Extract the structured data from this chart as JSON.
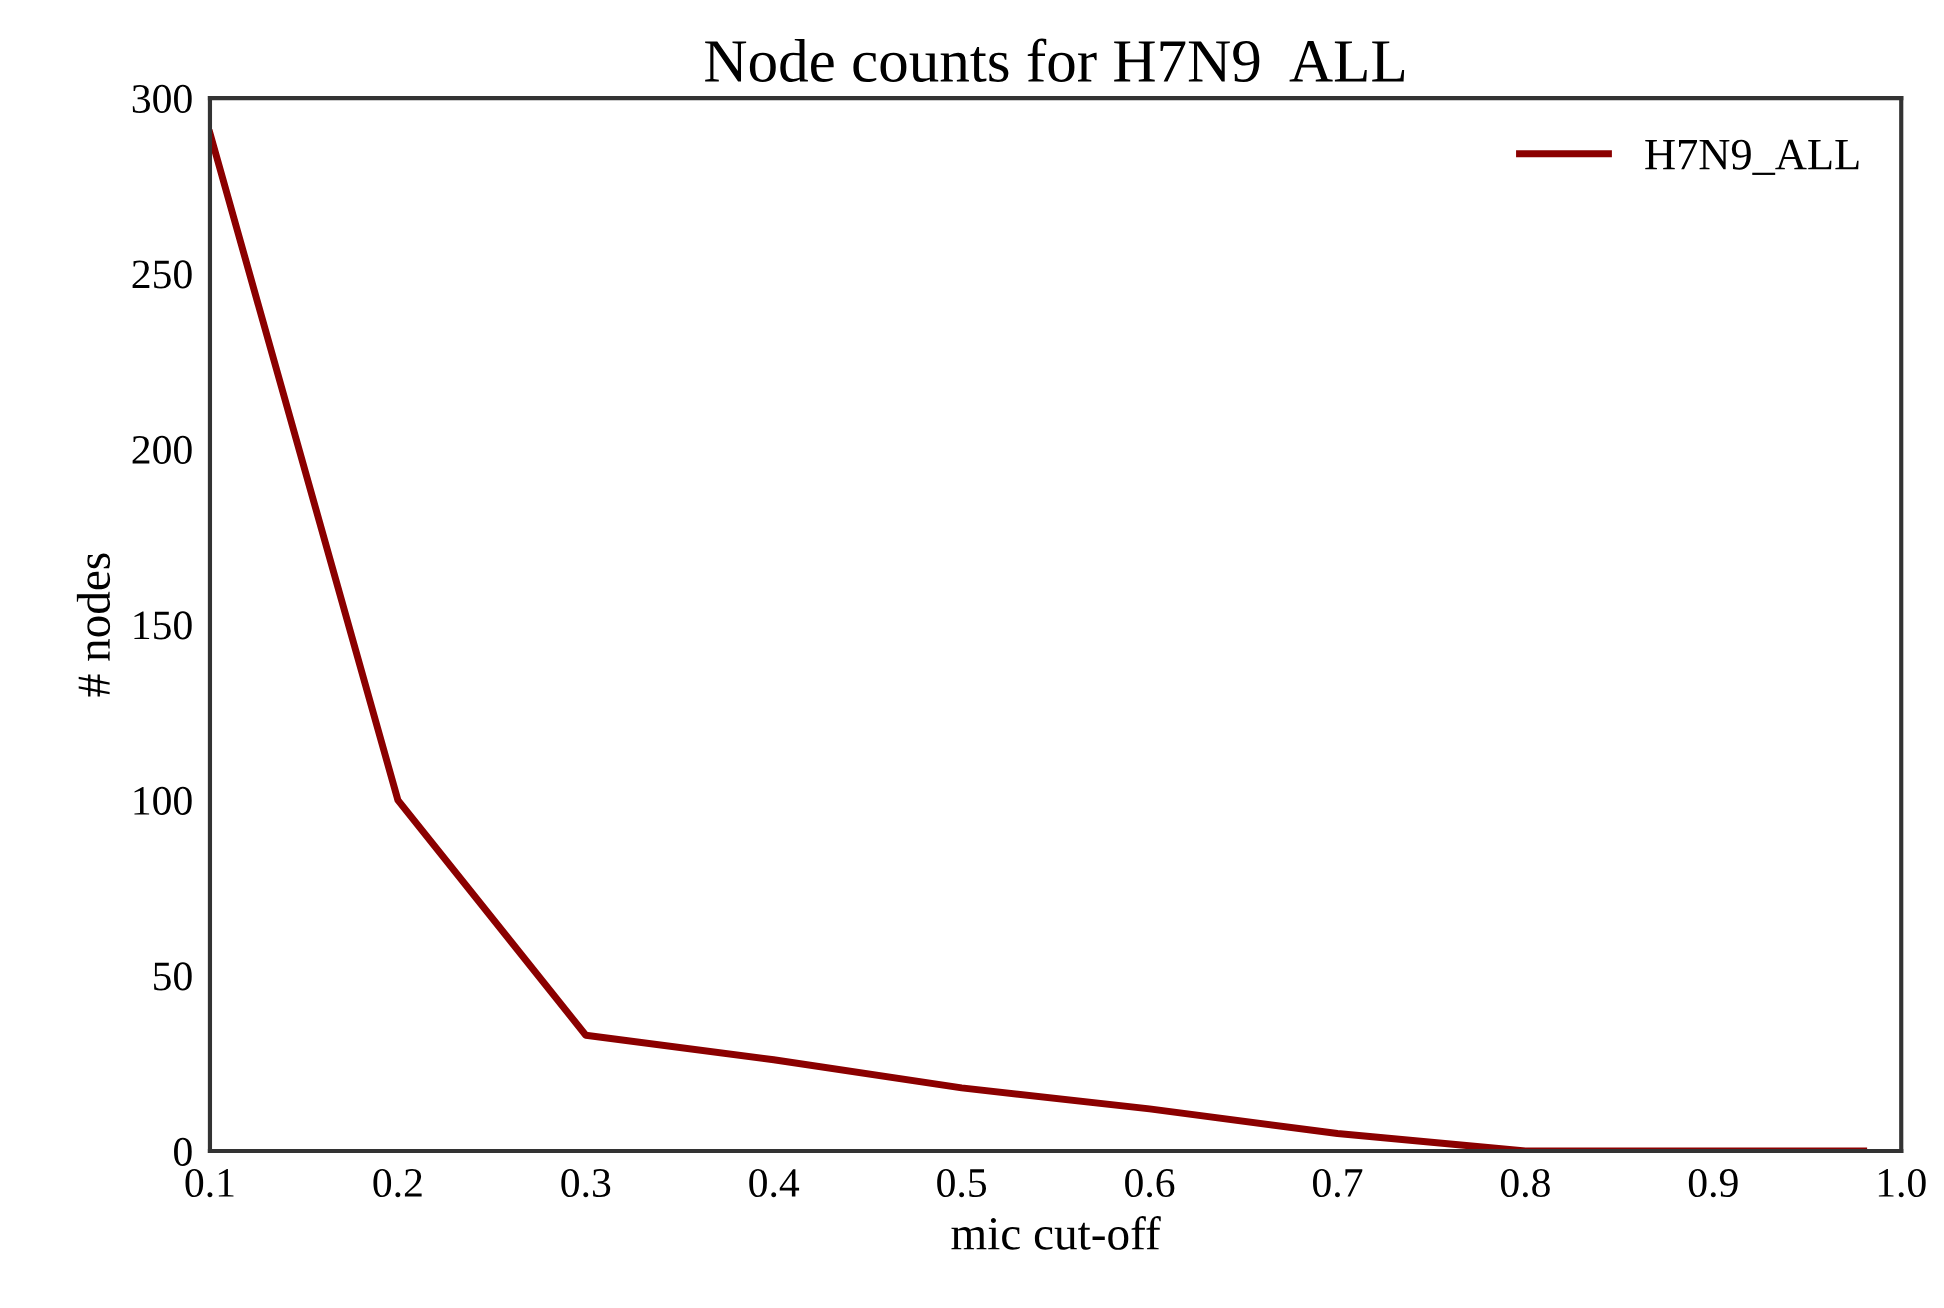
{
  "chart_data": {
    "type": "line",
    "title": "Node counts for H7N9  ALL",
    "xlabel": "mic cut-off",
    "ylabel": "# nodes",
    "x": [
      0.1,
      0.2,
      0.3,
      0.4,
      0.5,
      0.6,
      0.7,
      0.8,
      0.9,
      0.98
    ],
    "series": [
      {
        "name": "H7N9_ALL",
        "color": "#8b0000",
        "values": [
          290,
          100,
          33,
          26,
          18,
          12,
          5,
          0,
          0,
          0
        ]
      }
    ],
    "xlim": [
      0.1,
      1.0
    ],
    "xticks": [
      {
        "value": 0.1,
        "label": "0.1"
      },
      {
        "value": 0.2,
        "label": "0.2"
      },
      {
        "value": 0.3,
        "label": "0.3"
      },
      {
        "value": 0.4,
        "label": "0.4"
      },
      {
        "value": 0.5,
        "label": "0.5"
      },
      {
        "value": 0.6,
        "label": "0.6"
      },
      {
        "value": 0.7,
        "label": "0.7"
      },
      {
        "value": 0.8,
        "label": "0.8"
      },
      {
        "value": 0.9,
        "label": "0.9"
      },
      {
        "value": 1.0,
        "label": "1.0"
      }
    ],
    "ylim": [
      0,
      300
    ],
    "yticks": [
      0,
      50,
      100,
      150,
      200,
      250,
      300
    ],
    "grid": false,
    "legend": "top right",
    "line_style": "solid"
  }
}
